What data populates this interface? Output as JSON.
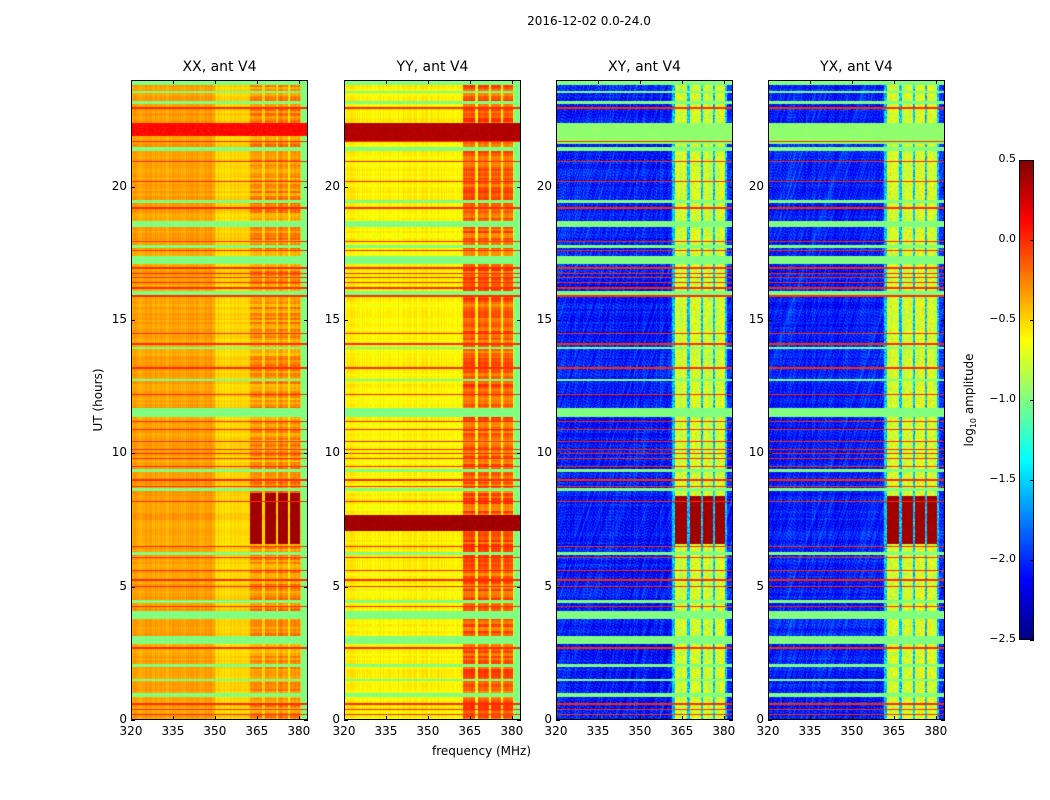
{
  "chart_data": {
    "type": "heatmap",
    "title": "2016-12-02 0.0-24.0",
    "xlabel": "frequency (MHz)",
    "ylabel": "UT (hours)",
    "xlim": [
      320,
      383.3
    ],
    "ylim": [
      0,
      24
    ],
    "xticks": [
      320,
      335,
      350,
      365,
      380
    ],
    "xtick_labels": [
      "320",
      "335",
      "350",
      "365",
      "380"
    ],
    "yticks": [
      0,
      5,
      10,
      15,
      20
    ],
    "ytick_labels": [
      "0",
      "5",
      "10",
      "15",
      "20"
    ],
    "colorbar": {
      "label_main": "log",
      "label_sub": "10",
      "label_rest": " amplitude",
      "colormap": "jet",
      "range": [
        -2.5,
        0.5
      ],
      "ticks": [
        0.5,
        0.0,
        -0.5,
        -1.0,
        -1.5,
        -2.0,
        -2.5
      ],
      "tick_labels": [
        "0.5",
        "0.0",
        "−0.5",
        "−1.0",
        "−1.5",
        "−2.0",
        "−2.5"
      ]
    },
    "panels": [
      {
        "title": "XX, ant V4",
        "kind": "parallel",
        "base_low": -0.35,
        "base_high": -0.5,
        "channel_level": -0.3,
        "burst_level": 0.45,
        "burst_hours": [
          6.6,
          8.5
        ],
        "burst_full_width": false,
        "extra_band": [
          21.9,
          22.4,
          0.05
        ]
      },
      {
        "title": "YY, ant V4",
        "kind": "parallel",
        "base_low": -0.6,
        "base_high": -0.6,
        "channel_level": -0.15,
        "burst_level": 0.45,
        "burst_hours": [
          7.1,
          7.7
        ],
        "burst_full_width": true,
        "extra_band": [
          21.7,
          22.4,
          0.3
        ]
      },
      {
        "title": "XY, ant V4",
        "kind": "cross",
        "base_low": -2.25,
        "base_high": -2.2,
        "channel_level": -0.85,
        "burst_level": 0.45,
        "burst_hours": [
          6.6,
          8.4
        ],
        "burst_full_width": false,
        "extra_band": [
          21.6,
          22.4,
          -1.0
        ]
      },
      {
        "title": "YX, ant V4",
        "kind": "cross",
        "base_low": -2.25,
        "base_high": -2.2,
        "channel_level": -0.85,
        "burst_level": 0.45,
        "burst_hours": [
          6.6,
          8.4
        ],
        "burst_full_width": false,
        "extra_band": [
          21.6,
          22.4,
          -1.0
        ]
      }
    ],
    "channel_bands_mhz": [
      [
        362.5,
        367.0
      ],
      [
        367.8,
        371.8
      ],
      [
        372.5,
        376.3
      ],
      [
        377.0,
        380.5
      ]
    ],
    "flagged_low_rows_hours": [
      [
        0.85,
        1.0
      ],
      [
        1.45,
        1.55
      ],
      [
        2.0,
        2.1
      ],
      [
        2.85,
        3.15
      ],
      [
        3.8,
        4.1
      ],
      [
        4.4,
        4.5
      ],
      [
        6.2,
        6.3
      ],
      [
        8.6,
        8.7
      ],
      [
        9.3,
        9.4
      ],
      [
        11.35,
        11.7
      ],
      [
        12.7,
        12.8
      ],
      [
        13.9,
        14.0
      ],
      [
        15.85,
        16.1
      ],
      [
        17.1,
        17.4
      ],
      [
        17.7,
        17.8
      ],
      [
        18.5,
        18.7
      ],
      [
        19.4,
        19.5
      ],
      [
        21.35,
        21.5
      ],
      [
        23.1,
        23.2
      ],
      [
        23.5,
        23.6
      ],
      [
        23.8,
        24.0
      ]
    ],
    "flagged_high_rows_hours": [
      0.2,
      0.4,
      0.6,
      2.7,
      4.25,
      5.0,
      5.25,
      5.6,
      6.1,
      6.5,
      8.2,
      8.75,
      9.0,
      9.5,
      9.8,
      10.0,
      10.15,
      10.45,
      10.9,
      11.2,
      12.2,
      13.2,
      14.1,
      14.5,
      15.9,
      16.2,
      16.4,
      16.6,
      16.75,
      16.95,
      17.6,
      17.95,
      19.2,
      20.2,
      20.95,
      21.7,
      22.95
    ]
  }
}
